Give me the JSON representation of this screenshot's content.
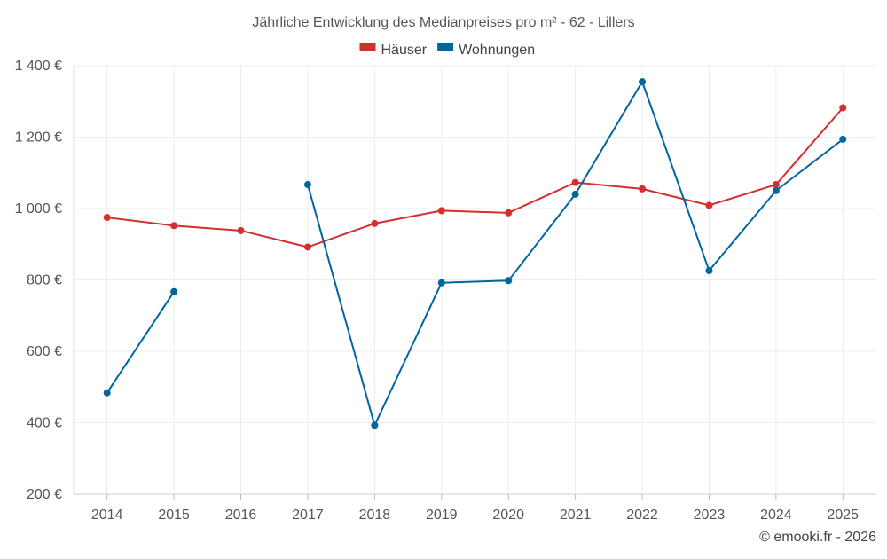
{
  "chart_data": {
    "type": "line",
    "title": "Jährliche Entwicklung des Medianpreises pro m² - 62 - Lillers",
    "categories": [
      "2014",
      "2015",
      "2016",
      "2017",
      "2018",
      "2019",
      "2020",
      "2021",
      "2022",
      "2023",
      "2024",
      "2025"
    ],
    "y_ticks": [
      "1 400 €",
      "1 200 €",
      "1 000 €",
      "800 €",
      "600 €",
      "400 €",
      "200 €"
    ],
    "y_tick_values": [
      1400,
      1200,
      1000,
      800,
      600,
      400,
      200
    ],
    "ylim": [
      200,
      1400
    ],
    "grid": true,
    "legend_position": "top-center",
    "series": [
      {
        "name": "Häuser",
        "color": "#d32f2f",
        "values": [
          975,
          952,
          938,
          892,
          958,
          994,
          988,
          1073,
          1055,
          1009,
          1067,
          1282
        ]
      },
      {
        "name": "Wohnungen",
        "color": "#00669e",
        "values": [
          484,
          767,
          null,
          1067,
          393,
          792,
          798,
          1040,
          1355,
          826,
          1050,
          1194
        ]
      }
    ],
    "credit": "© emooki.fr - 2026"
  }
}
